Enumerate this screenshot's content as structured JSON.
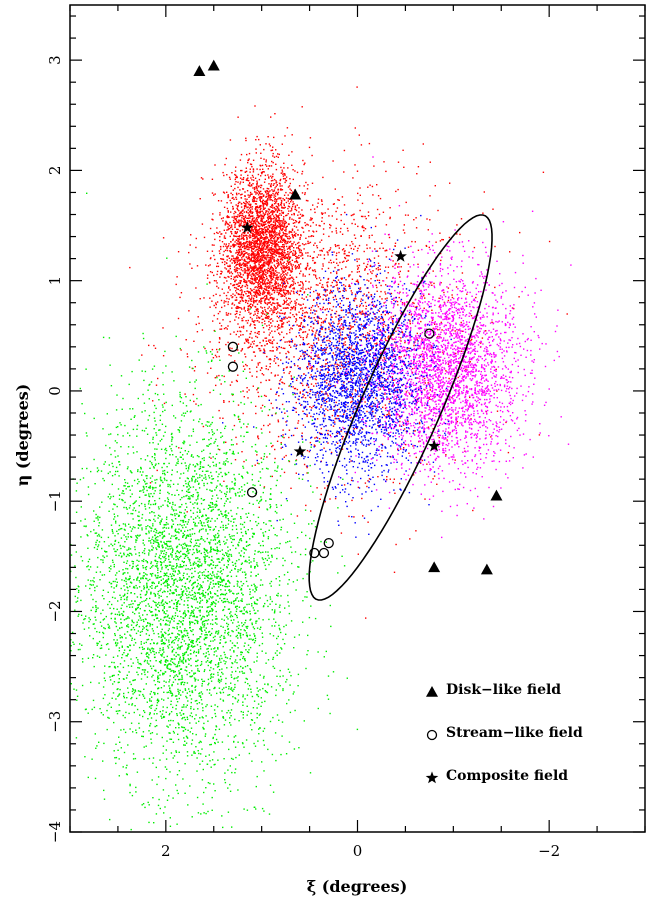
{
  "chart_data": {
    "type": "scatter",
    "xlabel": "ξ (degrees)",
    "ylabel": "η (degrees)",
    "xlim": [
      3,
      -3
    ],
    "ylim": [
      -4,
      3.5
    ],
    "x_ticks": [
      {
        "value": 2,
        "label": "2"
      },
      {
        "value": 0,
        "label": "0"
      },
      {
        "value": -2,
        "label": "−2"
      }
    ],
    "y_ticks": [
      {
        "value": 3,
        "label": "3"
      },
      {
        "value": 2,
        "label": "2"
      },
      {
        "value": 1,
        "label": "1"
      },
      {
        "value": 0,
        "label": "0"
      },
      {
        "value": -1,
        "label": "−1"
      },
      {
        "value": -2,
        "label": "−2"
      },
      {
        "value": -3,
        "label": "−3"
      },
      {
        "value": -4,
        "label": "−4"
      }
    ],
    "grid": false,
    "legend_position": "bottom-right",
    "clouds": [
      {
        "color": "#ff0000",
        "center": [
          0.3,
          0.6
        ],
        "spread": [
          1.1,
          1.1
        ],
        "count": 2000
      },
      {
        "color": "#ff0000",
        "center": [
          1.0,
          1.3
        ],
        "spread": [
          0.35,
          0.6
        ],
        "count": 3000
      },
      {
        "color": "#00ee00",
        "center": [
          1.8,
          -1.8
        ],
        "spread": [
          0.9,
          1.4
        ],
        "count": 4500
      },
      {
        "color": "#ff00ff",
        "center": [
          -0.9,
          0.2
        ],
        "spread": [
          0.65,
          0.75
        ],
        "count": 3000
      },
      {
        "color": "#0000ff",
        "center": [
          0.0,
          0.1
        ],
        "spread": [
          0.55,
          0.7
        ],
        "count": 2400
      }
    ],
    "ellipse": {
      "center": [
        -0.45,
        -0.15
      ],
      "semi_major": 1.95,
      "semi_minor": 0.4,
      "angle_deg": -63
    },
    "series": [
      {
        "name": "Disk−like field",
        "marker": "triangle",
        "points": [
          [
            1.65,
            2.9
          ],
          [
            1.5,
            2.95
          ],
          [
            0.65,
            1.78
          ],
          [
            -0.8,
            -1.6
          ],
          [
            -1.35,
            -1.62
          ],
          [
            -1.45,
            -0.95
          ]
        ]
      },
      {
        "name": "Stream−like field",
        "marker": "circle",
        "points": [
          [
            1.3,
            0.4
          ],
          [
            1.3,
            0.22
          ],
          [
            1.1,
            -0.92
          ],
          [
            0.45,
            -1.47
          ],
          [
            0.35,
            -1.47
          ],
          [
            0.3,
            -1.38
          ],
          [
            -0.75,
            0.52
          ]
        ]
      },
      {
        "name": "Composite field",
        "marker": "star",
        "points": [
          [
            1.15,
            1.48
          ],
          [
            -0.45,
            1.22
          ],
          [
            0.6,
            -0.55
          ],
          [
            -0.8,
            -0.5
          ]
        ]
      }
    ]
  }
}
